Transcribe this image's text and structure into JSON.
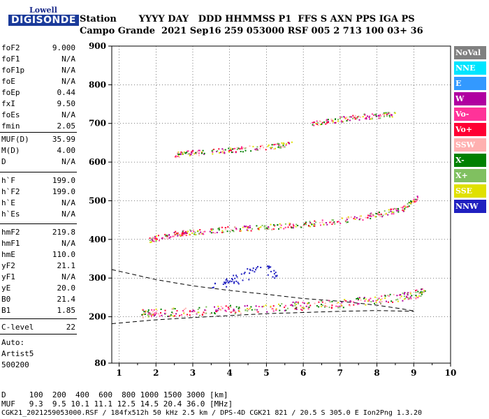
{
  "logo": {
    "line1": "Lowell",
    "line2": "DIGISONDE"
  },
  "header": {
    "row1": "Station       YYYY DAY   DDD HHMMSS P1  FFS S AXN PPS IGA PS",
    "row2": "Campo Grande  2021 Sep16 259 053000 RSF 005 2 713 100 03+ 36"
  },
  "params": [
    {
      "k": "foF2",
      "v": "9.000"
    },
    {
      "k": "foF1",
      "v": "N/A"
    },
    {
      "k": "foF1p",
      "v": "N/A"
    },
    {
      "k": "foE",
      "v": "N/A"
    },
    {
      "k": "foEp",
      "v": "0.44"
    },
    {
      "k": "fxI",
      "v": "9.50"
    },
    {
      "k": "foEs",
      "v": "N/A"
    },
    {
      "k": "fmin",
      "v": "2.05"
    },
    {
      "k": "MUF(D)",
      "v": "35.99"
    },
    {
      "k": "M(D)",
      "v": "4.00"
    },
    {
      "k": "D",
      "v": "N/A"
    },
    {
      "k": "h`F",
      "v": "199.0"
    },
    {
      "k": "h`F2",
      "v": "199.0"
    },
    {
      "k": "h`E",
      "v": "N/A"
    },
    {
      "k": "h`Es",
      "v": "N/A"
    },
    {
      "k": "hmF2",
      "v": "219.8"
    },
    {
      "k": "hmF1",
      "v": "N/A"
    },
    {
      "k": "hmE",
      "v": "110.0"
    },
    {
      "k": "yF2",
      "v": "21.1"
    },
    {
      "k": "yF1",
      "v": "N/A"
    },
    {
      "k": "yE",
      "v": "20.0"
    },
    {
      "k": "B0",
      "v": "21.4"
    },
    {
      "k": "B1",
      "v": "1.85"
    },
    {
      "k": "C-level",
      "v": "22"
    }
  ],
  "auto": {
    "l1": "Auto:",
    "l2": "Artist5",
    "l3": "500200"
  },
  "footer": {
    "d_row": "D     100  200  400  600  800 1000 1500 3000 [km]",
    "muf_row": "MUF   9.3  9.5 10.1 11.1 12.5 14.5 20.4 36.0 [MHz]",
    "file_row": "CGK21_2021259053000.RSF / 184fx512h 50 kHz 2.5 km / DPS-4D CGK21 821 / 20.5 S 305.0 E Ion2Png 1.3.20"
  },
  "legend": [
    {
      "name": "NoVal",
      "color": "#808080"
    },
    {
      "name": "NNE",
      "color": "#00e5ff"
    },
    {
      "name": "E",
      "color": "#3399ff"
    },
    {
      "name": "W",
      "color": "#b000a0"
    },
    {
      "name": "Vo-",
      "color": "#ff3399"
    },
    {
      "name": "Vo+",
      "color": "#ff0033"
    },
    {
      "name": "SSW",
      "color": "#ffb0b0"
    },
    {
      "name": "X-",
      "color": "#008000"
    },
    {
      "name": "X+",
      "color": "#80c060"
    },
    {
      "name": "SSE",
      "color": "#e0e000"
    },
    {
      "name": "NNW",
      "color": "#2020c0"
    }
  ],
  "chart_data": {
    "type": "scatter",
    "x": {
      "min": 0.8,
      "max": 10,
      "ticks": [
        1,
        2,
        3,
        4,
        5,
        6,
        7,
        8,
        9,
        10
      ]
    },
    "y": {
      "min": 80,
      "max": 900,
      "ticks": [
        80,
        200,
        300,
        400,
        500,
        600,
        700,
        800,
        900
      ]
    },
    "grid": true,
    "series": [
      {
        "name": "traceF1",
        "points": [
          [
            1.6,
            210
          ],
          [
            2,
            212
          ],
          [
            3,
            215
          ],
          [
            4,
            220
          ],
          [
            5,
            225
          ],
          [
            6,
            230
          ],
          [
            7,
            236
          ],
          [
            8,
            245
          ],
          [
            8.8,
            255
          ],
          [
            9.3,
            265
          ]
        ]
      },
      {
        "name": "traceF2",
        "points": [
          [
            1.8,
            400
          ],
          [
            2.5,
            415
          ],
          [
            3,
            420
          ],
          [
            4,
            428
          ],
          [
            5,
            433
          ],
          [
            6,
            440
          ],
          [
            7,
            450
          ],
          [
            8,
            465
          ],
          [
            8.7,
            480
          ],
          [
            9.1,
            510
          ]
        ]
      },
      {
        "name": "traceF3",
        "points": [
          [
            2.5,
            620
          ],
          [
            3,
            625
          ],
          [
            4,
            632
          ],
          [
            5,
            640
          ],
          [
            5.7,
            648
          ]
        ]
      },
      {
        "name": "traceF4",
        "points": [
          [
            6.2,
            700
          ],
          [
            7,
            712
          ],
          [
            7.8,
            720
          ],
          [
            8.5,
            725
          ]
        ]
      },
      {
        "name": "scatter",
        "points": [
          [
            3.5,
            280
          ],
          [
            4,
            300
          ],
          [
            4.5,
            320
          ],
          [
            5,
            330
          ],
          [
            5.3,
            310
          ],
          [
            4.2,
            290
          ],
          [
            3.8,
            285
          ]
        ]
      }
    ],
    "profile": [
      [
        0.8,
        322
      ],
      [
        2,
        296
      ],
      [
        3,
        280
      ],
      [
        4,
        268
      ],
      [
        5,
        258
      ],
      [
        6,
        247
      ],
      [
        7,
        240
      ],
      [
        8,
        230
      ],
      [
        8.7,
        220
      ],
      [
        9,
        215
      ]
    ],
    "profile_low": [
      [
        0.8,
        182
      ],
      [
        2,
        192
      ],
      [
        3,
        198
      ],
      [
        4,
        203
      ],
      [
        5,
        208
      ],
      [
        6,
        211
      ],
      [
        7,
        214
      ],
      [
        8,
        216
      ],
      [
        9,
        214
      ]
    ]
  }
}
